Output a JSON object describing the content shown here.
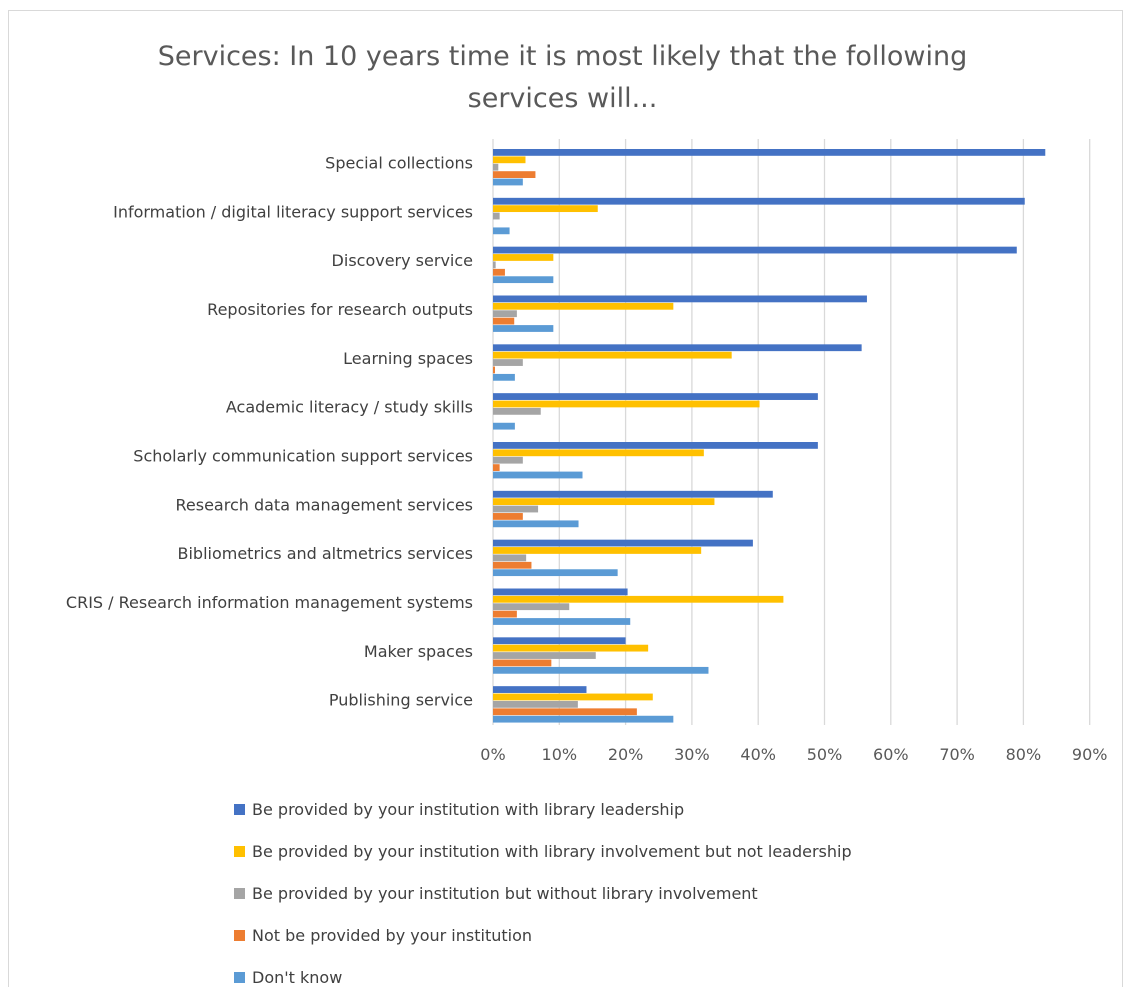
{
  "chart_data": {
    "type": "bar",
    "orientation": "horizontal",
    "title_lines": [
      "Services: In 10 years time it is most likely that the following",
      "services will..."
    ],
    "categories": [
      "Special collections",
      "Information / digital literacy support services",
      "Discovery service",
      "Repositories for research outputs",
      "Learning spaces",
      "Academic literacy / study skills",
      "Scholarly communication support services",
      "Research data management services",
      "Bibliometrics and altmetrics services",
      "CRIS / Research information management systems",
      "Maker spaces",
      "Publishing service"
    ],
    "series": [
      {
        "name": "Be provided by your institution with library leadership",
        "color": "#4472C4",
        "values": [
          83.3,
          80.2,
          79.0,
          56.4,
          55.6,
          49.0,
          49.0,
          42.2,
          39.2,
          20.3,
          20.0,
          14.1
        ]
      },
      {
        "name": "Be provided by your institution with library involvement but not leadership",
        "color": "#FFC000",
        "values": [
          4.9,
          15.8,
          9.1,
          27.2,
          36.0,
          40.2,
          31.8,
          33.4,
          31.4,
          43.8,
          23.4,
          24.1
        ]
      },
      {
        "name": "Be provided by your institution but without library involvement",
        "color": "#A5A5A5",
        "values": [
          0.8,
          1.0,
          0.4,
          3.6,
          4.5,
          7.2,
          4.5,
          6.8,
          5.0,
          11.5,
          15.5,
          12.8
        ]
      },
      {
        "name": "Not be provided by your institution",
        "color": "#ED7D31",
        "values": [
          6.4,
          0,
          1.8,
          3.2,
          0.3,
          0,
          1.0,
          4.5,
          5.8,
          3.6,
          8.8,
          21.7
        ]
      },
      {
        "name": "Don't know",
        "color": "#5B9BD5",
        "values": [
          4.5,
          2.5,
          9.1,
          9.1,
          3.3,
          3.3,
          13.5,
          12.9,
          18.8,
          20.7,
          32.5,
          27.2
        ]
      }
    ],
    "x_ticks": [
      "0%",
      "10%",
      "20%",
      "30%",
      "40%",
      "50%",
      "60%",
      "70%",
      "80%",
      "90%"
    ],
    "xlim": [
      0,
      90
    ],
    "grid": true,
    "legend_position": "bottom-left"
  }
}
